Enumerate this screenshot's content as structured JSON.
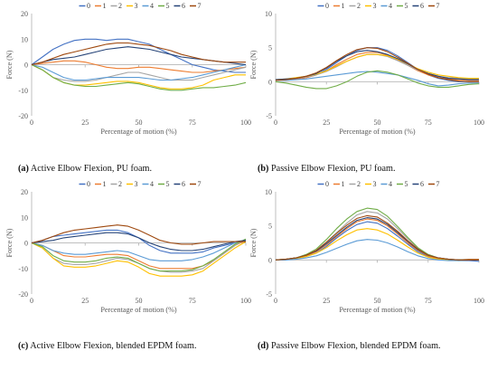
{
  "figure": {
    "series_names": [
      "0",
      "1",
      "2",
      "3",
      "4",
      "5",
      "6",
      "7"
    ],
    "series_colors": [
      "#4472c4",
      "#ed7d31",
      "#a5a5a5",
      "#ffc000",
      "#5b9bd5",
      "#70ad47",
      "#264478",
      "#9e480e"
    ],
    "captions": [
      {
        "tag": "(a)",
        "text": " Active Elbow Flexion, PU foam."
      },
      {
        "tag": "(b)",
        "text": " Passive Elbow Flexion, PU foam."
      },
      {
        "tag": "(c)",
        "text": " Active Elbow Flexion, blended EPDM foam."
      },
      {
        "tag": "(d)",
        "text": " Passive Elbow Flexion, blended EPDM foam."
      }
    ]
  },
  "chart_data": [
    {
      "type": "line",
      "xlabel": "Percentage of motion (%)",
      "ylabel": "Force (N)",
      "xlim": [
        0,
        100
      ],
      "ylim": [
        -20,
        20
      ],
      "xticks": [
        0,
        25,
        50,
        75,
        100
      ],
      "yticks": [
        -20,
        -10,
        0,
        10,
        20
      ],
      "legend": "top-center",
      "grid": false,
      "x": [
        0,
        5,
        10,
        15,
        20,
        25,
        30,
        35,
        40,
        45,
        50,
        55,
        60,
        65,
        70,
        75,
        80,
        85,
        90,
        95,
        100
      ],
      "series": [
        {
          "name": "0",
          "values": [
            0,
            3,
            6,
            8,
            9.5,
            10,
            10,
            9.5,
            10,
            10,
            9,
            8,
            6,
            4,
            2,
            0,
            -1,
            -2,
            -2.5,
            -3,
            -3
          ]
        },
        {
          "name": "1",
          "values": [
            0,
            0.5,
            1,
            1.5,
            1.5,
            1,
            0,
            -1,
            -1.5,
            -1.5,
            -1,
            -1,
            -1.5,
            -2,
            -2.5,
            -3,
            -3,
            -2.5,
            -2,
            -1.5,
            -1
          ]
        },
        {
          "name": "2",
          "values": [
            0,
            -2,
            -5,
            -6,
            -6.5,
            -6.5,
            -6,
            -5,
            -4,
            -3,
            -3,
            -4,
            -5,
            -6,
            -6,
            -6,
            -5,
            -4,
            -3,
            -2,
            -1
          ]
        },
        {
          "name": "3",
          "values": [
            0,
            -2,
            -5,
            -7,
            -8,
            -8,
            -7.5,
            -7,
            -6.5,
            -6.5,
            -7,
            -8,
            -9,
            -9.5,
            -9.5,
            -9,
            -8,
            -6,
            -5,
            -4,
            -4
          ]
        },
        {
          "name": "4",
          "values": [
            0,
            -1,
            -3,
            -5,
            -6,
            -6,
            -5.5,
            -5,
            -5,
            -5,
            -5,
            -5.5,
            -6,
            -6,
            -5.5,
            -5,
            -4,
            -3,
            -2,
            -1,
            0
          ]
        },
        {
          "name": "5",
          "values": [
            0,
            -2,
            -5,
            -7,
            -8,
            -8.5,
            -8.5,
            -8,
            -7.5,
            -7,
            -7.5,
            -8.5,
            -9.5,
            -10,
            -10,
            -9.5,
            -9,
            -9,
            -8.5,
            -8,
            -7
          ]
        },
        {
          "name": "6",
          "values": [
            0,
            1,
            2,
            2.5,
            3,
            4,
            5,
            6,
            6.5,
            7,
            6.5,
            6,
            5,
            4,
            3,
            2.5,
            2,
            1.5,
            1,
            0.5,
            0
          ]
        },
        {
          "name": "7",
          "values": [
            0,
            1,
            2.5,
            4,
            5,
            6,
            7,
            8,
            8.5,
            8.5,
            8,
            7.5,
            6.5,
            5.5,
            4,
            3,
            2,
            1.5,
            1,
            1,
            1
          ]
        }
      ]
    },
    {
      "type": "line",
      "xlabel": "Percentage of motion (%)",
      "ylabel": "Force (N)",
      "xlim": [
        0,
        100
      ],
      "ylim": [
        -5,
        10
      ],
      "xticks": [
        0,
        25,
        50,
        75,
        100
      ],
      "yticks": [
        -5,
        0,
        5,
        10
      ],
      "legend": "top-center",
      "grid": false,
      "x": [
        0,
        5,
        10,
        15,
        20,
        25,
        30,
        35,
        40,
        45,
        50,
        55,
        60,
        65,
        70,
        75,
        80,
        85,
        90,
        95,
        100
      ],
      "series": [
        {
          "name": "0",
          "values": [
            0.3,
            0.3,
            0.4,
            0.6,
            1,
            1.8,
            2.8,
            3.8,
            4.6,
            5,
            5,
            4.6,
            3.8,
            2.8,
            1.8,
            1,
            0.5,
            0.2,
            0,
            0,
            0
          ]
        },
        {
          "name": "1",
          "values": [
            0.2,
            0.3,
            0.4,
            0.6,
            1,
            1.6,
            2.5,
            3.3,
            4,
            4.3,
            4.3,
            3.9,
            3.2,
            2.4,
            1.6,
            1,
            0.6,
            0.4,
            0.3,
            0.2,
            0.2
          ]
        },
        {
          "name": "2",
          "values": [
            0.3,
            0.4,
            0.5,
            0.7,
            1,
            1.5,
            2.2,
            3,
            3.6,
            4,
            4,
            3.7,
            3.1,
            2.4,
            1.7,
            1.2,
            0.8,
            0.6,
            0.5,
            0.4,
            0.4
          ]
        },
        {
          "name": "3",
          "values": [
            0.3,
            0.4,
            0.6,
            0.8,
            1.1,
            1.6,
            2.3,
            3,
            3.6,
            4,
            4,
            3.8,
            3.3,
            2.6,
            1.9,
            1.4,
            1,
            0.8,
            0.6,
            0.5,
            0.5
          ]
        },
        {
          "name": "4",
          "values": [
            0.2,
            0.2,
            0.3,
            0.4,
            0.6,
            0.8,
            1,
            1.2,
            1.4,
            1.5,
            1.4,
            1.2,
            1,
            0.6,
            0.2,
            -0.3,
            -0.6,
            -0.5,
            -0.3,
            -0.2,
            -0.2
          ]
        },
        {
          "name": "5",
          "values": [
            0,
            -0.2,
            -0.5,
            -0.8,
            -1,
            -1,
            -0.6,
            0,
            0.8,
            1.4,
            1.6,
            1.4,
            1,
            0.4,
            -0.2,
            -0.6,
            -0.8,
            -0.8,
            -0.6,
            -0.4,
            -0.3
          ]
        },
        {
          "name": "6",
          "values": [
            0.3,
            0.4,
            0.5,
            0.8,
            1.2,
            2,
            3,
            3.8,
            4.4,
            4.6,
            4.4,
            4,
            3.4,
            2.6,
            1.8,
            1.2,
            0.8,
            0.5,
            0.4,
            0.3,
            0.3
          ]
        },
        {
          "name": "7",
          "values": [
            0.2,
            0.3,
            0.5,
            0.8,
            1.3,
            2.1,
            3.1,
            4,
            4.7,
            5,
            4.9,
            4.4,
            3.6,
            2.7,
            1.8,
            1.1,
            0.6,
            0.3,
            0.1,
            0,
            0
          ]
        }
      ]
    },
    {
      "type": "line",
      "xlabel": "Percentage of motion (%)",
      "ylabel": "Force (N)",
      "xlim": [
        0,
        100
      ],
      "ylim": [
        -20,
        20
      ],
      "xticks": [
        0,
        25,
        50,
        75,
        100
      ],
      "yticks": [
        -20,
        -10,
        0,
        10,
        20
      ],
      "legend": "top-center",
      "grid": false,
      "x": [
        0,
        5,
        10,
        15,
        20,
        25,
        30,
        35,
        40,
        45,
        50,
        55,
        60,
        65,
        70,
        75,
        80,
        85,
        90,
        95,
        100
      ],
      "series": [
        {
          "name": "0",
          "values": [
            0,
            1,
            2.5,
            3,
            3.5,
            4,
            4.5,
            5,
            5,
            4,
            2,
            -1,
            -3,
            -4,
            -4,
            -4,
            -3.5,
            -2,
            -1,
            0,
            1
          ]
        },
        {
          "name": "1",
          "values": [
            0,
            -1,
            -3,
            -5,
            -5.5,
            -5.5,
            -5,
            -4.5,
            -4.5,
            -5,
            -7,
            -9,
            -10,
            -10,
            -10,
            -10,
            -9,
            -7,
            -4,
            -1,
            1
          ]
        },
        {
          "name": "2",
          "values": [
            0,
            -2,
            -6,
            -8,
            -8.5,
            -8.5,
            -8,
            -7,
            -6,
            -6.5,
            -8,
            -10,
            -11,
            -11.5,
            -11.5,
            -11,
            -10,
            -7,
            -4,
            -1,
            1.5
          ]
        },
        {
          "name": "3",
          "values": [
            0,
            -2,
            -6,
            -9,
            -9.5,
            -9.5,
            -9,
            -8,
            -7,
            -7.5,
            -9.5,
            -12,
            -13,
            -13,
            -13,
            -12.5,
            -11,
            -8,
            -5,
            -2,
            0.5
          ]
        },
        {
          "name": "4",
          "values": [
            0,
            -1,
            -3,
            -4,
            -4.5,
            -4.5,
            -4,
            -3.5,
            -3,
            -3.5,
            -5,
            -6.5,
            -7,
            -7,
            -7,
            -6.5,
            -5.5,
            -4,
            -2,
            0,
            1
          ]
        },
        {
          "name": "5",
          "values": [
            0,
            -1.5,
            -5,
            -7,
            -7.5,
            -7.5,
            -7,
            -6,
            -5.5,
            -6,
            -8,
            -10,
            -11,
            -11,
            -11,
            -10.5,
            -9,
            -6.5,
            -3.5,
            -0.5,
            1.5
          ]
        },
        {
          "name": "6",
          "values": [
            0,
            0.5,
            1,
            2,
            2.5,
            3,
            3.5,
            4,
            4,
            3.5,
            2,
            0,
            -1.5,
            -2.5,
            -3,
            -3,
            -2.5,
            -1.5,
            -0.5,
            0.5,
            1
          ]
        },
        {
          "name": "7",
          "values": [
            0,
            1,
            2.5,
            4,
            5,
            5.5,
            6,
            6.5,
            7,
            6.5,
            5,
            3,
            1,
            0,
            -0.5,
            -0.5,
            0,
            0.5,
            0.5,
            0.5,
            0.5
          ]
        }
      ]
    },
    {
      "type": "line",
      "xlabel": "Percentage of motion (%)",
      "ylabel": "Force (N)",
      "xlim": [
        0,
        100
      ],
      "ylim": [
        -5,
        10
      ],
      "xticks": [
        0,
        25,
        50,
        75,
        100
      ],
      "yticks": [
        -5,
        0,
        5,
        10
      ],
      "legend": "top-center",
      "grid": false,
      "x": [
        0,
        5,
        10,
        15,
        20,
        25,
        30,
        35,
        40,
        45,
        50,
        55,
        60,
        65,
        70,
        75,
        80,
        85,
        90,
        95,
        100
      ],
      "series": [
        {
          "name": "0",
          "values": [
            0,
            0,
            0.2,
            0.5,
            1,
            2,
            3.2,
            4.3,
            5.2,
            5.6,
            5.4,
            4.6,
            3.5,
            2.3,
            1.2,
            0.5,
            0.2,
            0,
            -0.1,
            -0.1,
            -0.2
          ]
        },
        {
          "name": "1",
          "values": [
            0,
            0.1,
            0.3,
            0.6,
            1.2,
            2.2,
            3.4,
            4.6,
            5.6,
            6,
            5.8,
            5,
            3.8,
            2.5,
            1.4,
            0.6,
            0.2,
            0,
            0,
            0.1,
            0.1
          ]
        },
        {
          "name": "2",
          "values": [
            0,
            0.1,
            0.3,
            0.7,
            1.4,
            2.6,
            4,
            5.4,
            6.6,
            7.1,
            6.9,
            6,
            4.6,
            3.1,
            1.7,
            0.8,
            0.3,
            0.1,
            0,
            0,
            0
          ]
        },
        {
          "name": "3",
          "values": [
            0,
            0.1,
            0.2,
            0.5,
            1,
            1.8,
            2.8,
            3.7,
            4.4,
            4.6,
            4.4,
            3.8,
            2.9,
            1.9,
            1,
            0.4,
            0.1,
            0,
            0,
            0,
            0
          ]
        },
        {
          "name": "4",
          "values": [
            0,
            0,
            0.1,
            0.3,
            0.6,
            1.1,
            1.7,
            2.3,
            2.8,
            3,
            2.9,
            2.5,
            1.9,
            1.2,
            0.6,
            0.2,
            0,
            -0.1,
            -0.1,
            0,
            0
          ]
        },
        {
          "name": "5",
          "values": [
            0,
            0.1,
            0.3,
            0.8,
            1.6,
            3,
            4.6,
            6,
            7.1,
            7.6,
            7.4,
            6.4,
            4.9,
            3.3,
            1.8,
            0.8,
            0.3,
            0.1,
            0,
            0,
            0
          ]
        },
        {
          "name": "6",
          "values": [
            0,
            0.1,
            0.3,
            0.7,
            1.3,
            2.4,
            3.6,
            4.8,
            5.8,
            6.2,
            6,
            5.2,
            4,
            2.7,
            1.5,
            0.7,
            0.3,
            0.1,
            0,
            0,
            0
          ]
        },
        {
          "name": "7",
          "values": [
            0,
            0.1,
            0.3,
            0.7,
            1.4,
            2.6,
            3.9,
            5.1,
            6.1,
            6.5,
            6.3,
            5.4,
            4.2,
            2.8,
            1.6,
            0.7,
            0.3,
            0.1,
            0,
            0,
            0
          ]
        }
      ]
    }
  ]
}
